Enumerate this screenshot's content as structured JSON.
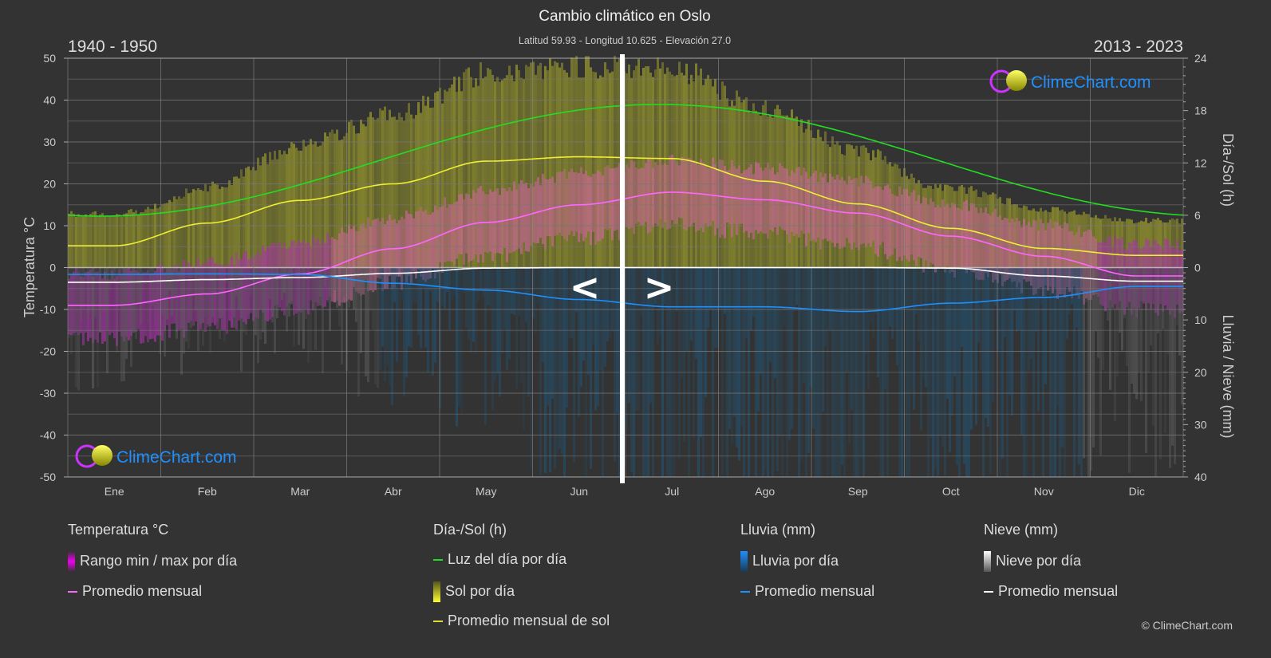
{
  "header": {
    "title": "Cambio climático en Oslo",
    "subtitle": "Latitud 59.93 - Longitud 10.625 - Elevación 27.0",
    "period_left": "1940 - 1950",
    "period_right": "2013 - 2023"
  },
  "chart_data": {
    "type": "line",
    "title": "Cambio climático en Oslo",
    "categories": [
      "Ene",
      "Feb",
      "Mar",
      "Abr",
      "May",
      "Jun",
      "Jul",
      "Ago",
      "Sep",
      "Oct",
      "Nov",
      "Dic"
    ],
    "left_axis": {
      "label": "Temperatura °C",
      "range": [
        -50,
        50
      ],
      "ticks": [
        "50",
        "40",
        "30",
        "20",
        "10",
        "0",
        "-10",
        "-20",
        "-30",
        "-40",
        "-50"
      ]
    },
    "right_axis_top": {
      "label": "Día-/Sol (h)",
      "range": [
        0,
        24
      ],
      "ticks": [
        "24",
        "18",
        "12",
        "6",
        "0"
      ]
    },
    "right_axis_bottom": {
      "label": "Lluvia / Nieve (mm)",
      "range": [
        0,
        40
      ],
      "ticks": [
        "10",
        "20",
        "30",
        "40"
      ]
    },
    "grid": true,
    "series": [
      {
        "name": "Promedio mensual",
        "group": "Temperatura °C",
        "unit": "°C",
        "color": "#ff66ff",
        "values": [
          -9.0,
          -6.3,
          -1.5,
          4.5,
          10.8,
          15.0,
          18.0,
          16.2,
          13.0,
          7.5,
          2.7,
          -2.0
        ]
      },
      {
        "name": "Luz del día por día",
        "group": "Día-/Sol (h)",
        "unit": "h",
        "color": "#22dd22",
        "values": [
          7.0,
          9.3,
          11.9,
          14.6,
          17.2,
          18.7,
          18.1,
          15.8,
          13.1,
          10.3,
          7.6,
          6.1
        ]
      },
      {
        "name": "Promedio mensual de sol",
        "group": "Día-/Sol (h)",
        "unit": "h",
        "color": "#eeee33",
        "values": [
          2.5,
          5.1,
          7.7,
          9.6,
          12.2,
          12.7,
          12.5,
          9.9,
          7.3,
          4.5,
          2.2,
          1.4
        ]
      },
      {
        "name": "Promedio mensual",
        "group": "Lluvia (mm)",
        "unit": "mm",
        "color": "#1e90ff",
        "values": [
          1.3,
          1.2,
          1.3,
          3.0,
          4.3,
          6.1,
          7.5,
          7.5,
          8.4,
          6.8,
          5.7,
          3.6
        ]
      },
      {
        "name": "Promedio mensual",
        "group": "Nieve (mm)",
        "unit": "mm",
        "color": "#ffffff",
        "values": [
          2.8,
          2.3,
          1.9,
          1.1,
          0.1,
          0,
          0,
          0,
          0,
          0.1,
          1.6,
          2.6
        ]
      }
    ]
  },
  "slider": {
    "prev": "<",
    "next": ">"
  },
  "logo": {
    "text": "ClimeChart.com"
  },
  "legend": {
    "temperature": {
      "title": "Temperatura °C",
      "range": "Rango min / max por día",
      "avg": "Promedio mensual"
    },
    "sun": {
      "title": "Día-/Sol (h)",
      "daylight": "Luz del día por día",
      "sun": "Sol por día",
      "avg": "Promedio mensual de sol"
    },
    "rain": {
      "title": "Lluvia (mm)",
      "daily": "Lluvia por día",
      "avg": "Promedio mensual"
    },
    "snow": {
      "title": "Nieve (mm)",
      "daily": "Nieve por día",
      "avg": "Promedio mensual"
    }
  },
  "copyright": "© ClimeChart.com"
}
